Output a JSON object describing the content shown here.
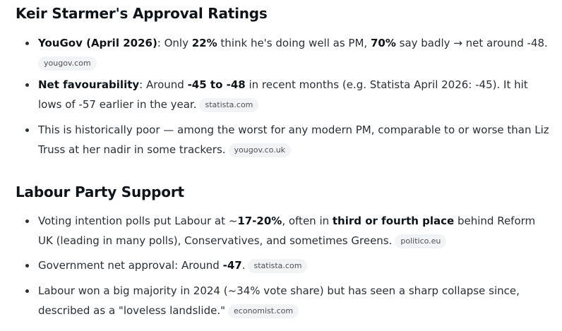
{
  "section1": {
    "title": "Keir Starmer's Approval Ratings",
    "items": [
      {
        "b1": "YouGov (April 2026)",
        "t1": ": Only ",
        "b2": "22%",
        "t2": " think he's doing well as PM, ",
        "b3": "70%",
        "t3": " say badly → net around -48.",
        "source": "yougov.com"
      },
      {
        "b1": "Net favourability",
        "t1": ": Around ",
        "b2": "-45 to -48",
        "t2": " in recent months (e.g. Statista April 2026: -45). It hit lows of -57 earlier in the year.",
        "source": "statista.com"
      },
      {
        "t1": "This is historically poor — among the worst for any modern PM, comparable to or worse than Liz Truss at her nadir in some trackers.",
        "source": "yougov.co.uk"
      }
    ]
  },
  "section2": {
    "title": "Labour Party Support",
    "items": [
      {
        "t1": "Voting intention polls put Labour at ~",
        "b1": "17-20%",
        "t2": ", often in ",
        "b2": "third or fourth place",
        "t3": " behind Reform UK (leading in many polls), Conservatives, and sometimes Greens.",
        "source": "politico.eu"
      },
      {
        "t1": "Government net approval: Around ",
        "b1": "-47",
        "t2": ".",
        "source": "statista.com"
      },
      {
        "t1": "Labour won a big majority in 2024 (~34% vote share) but has seen a sharp collapse since, described as a \"loveless landslide.\"",
        "source": "economist.com"
      }
    ]
  }
}
